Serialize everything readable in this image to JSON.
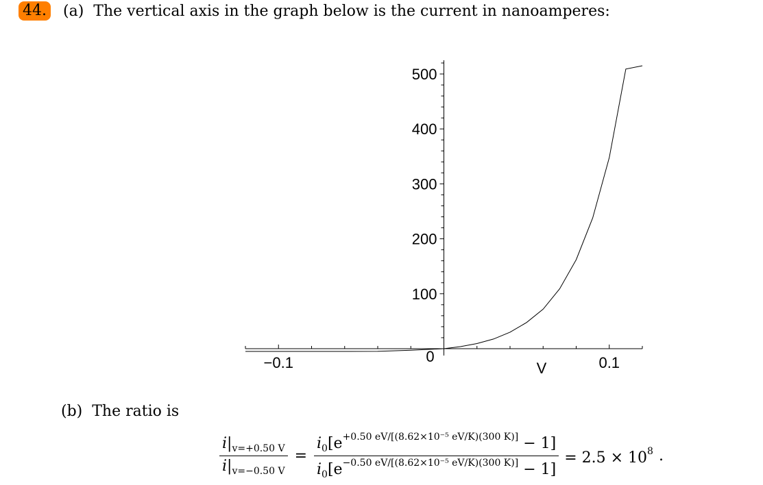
{
  "problem": {
    "number": "44.",
    "part_a_label": "(a)",
    "part_a_text": "The vertical axis in the graph below is the current in nanoamperes:",
    "part_b_label": "(b)",
    "part_b_text": "The ratio is"
  },
  "chart_data": {
    "type": "line",
    "xlabel": "V",
    "ylabel": "",
    "xlim": [
      -0.12,
      0.12
    ],
    "ylim": [
      0,
      520
    ],
    "x_ticks": [
      -0.1,
      0,
      0.1
    ],
    "x_tick_labels": [
      "−0.1",
      "0",
      "0.1"
    ],
    "y_ticks": [
      100,
      200,
      300,
      400,
      500
    ],
    "y_tick_labels": [
      "100",
      "200",
      "300",
      "400",
      "500"
    ],
    "series": [
      {
        "name": "",
        "x": [
          -0.12,
          -0.1,
          -0.08,
          -0.06,
          -0.04,
          -0.02,
          0,
          0.01,
          0.02,
          0.03,
          0.04,
          0.05,
          0.06,
          0.07,
          0.08,
          0.09,
          0.1,
          0.11,
          0.12
        ],
        "y": [
          -5,
          -5,
          -5,
          -5,
          -4.9,
          -2.7,
          0,
          3.7,
          9.4,
          17.6,
          30,
          47.6,
          72,
          109,
          162,
          238,
          348,
          509,
          515
        ]
      }
    ]
  },
  "equation": {
    "lhs_num_main": "i|",
    "lhs_num_sub": "v=+0.50 V",
    "lhs_den_main": "i|",
    "lhs_den_sub": "v=−0.50 V",
    "rhs_num_base": "i",
    "rhs_num_sub": "0",
    "rhs_num_open": "[e",
    "rhs_num_exp": "+0.50 eV/[(8.62×10⁻⁵ eV/K)(300 K)]",
    "rhs_num_close": "− 1]",
    "rhs_den_base": "i",
    "rhs_den_sub": "0",
    "rhs_den_open": "[e",
    "rhs_den_exp": "−0.50 eV/[(8.62×10⁻⁵ eV/K)(300 K)]",
    "rhs_den_close": "− 1]",
    "result": "= 2.5 × 10",
    "result_exp": "8",
    "period": "."
  }
}
